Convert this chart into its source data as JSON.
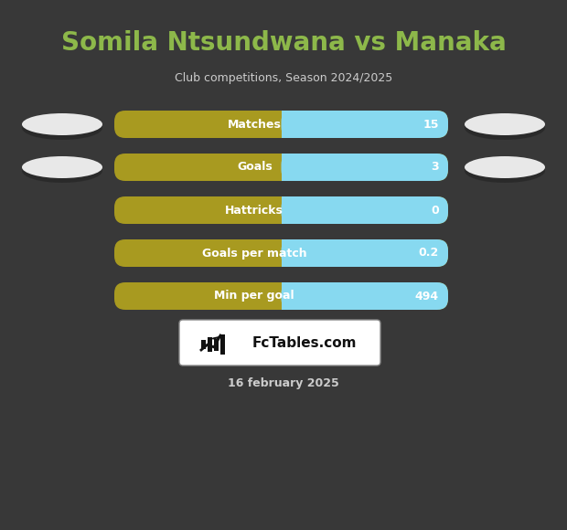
{
  "title": "Somila Ntsundwana vs Manaka",
  "subtitle": "Club competitions, Season 2024/2025",
  "date_label": "16 february 2025",
  "background_color": "#383838",
  "title_color": "#8db84a",
  "subtitle_color": "#cccccc",
  "date_color": "#cccccc",
  "rows": [
    {
      "label": "Matches",
      "value": "15"
    },
    {
      "label": "Goals",
      "value": "3"
    },
    {
      "label": "Hattricks",
      "value": "0"
    },
    {
      "label": "Goals per match",
      "value": "0.2"
    },
    {
      "label": "Min per goal",
      "value": "494"
    }
  ],
  "bar_left_color": "#a89a20",
  "bar_right_color": "#87d9f0",
  "bar_text_color": "#ffffff",
  "ellipse_color": "#e8e8e8",
  "ellipse_shadow_color": "#555555"
}
